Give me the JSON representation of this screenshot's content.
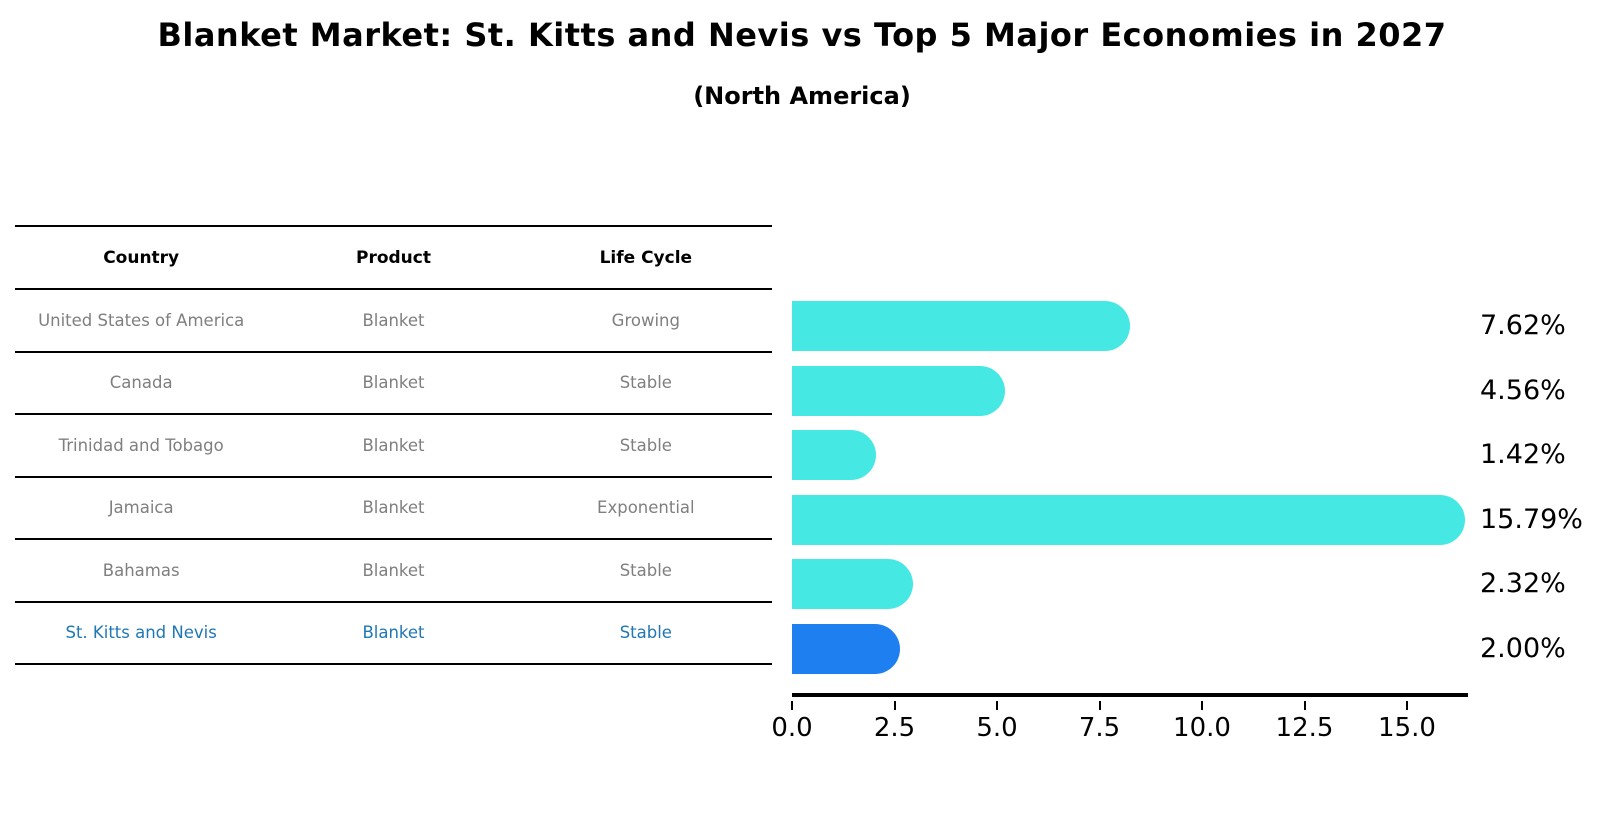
{
  "title": "Blanket Market: St. Kitts and Nevis vs Top 5 Major Economies in 2027",
  "subtitle": "(North America)",
  "table": {
    "headers": [
      "Country",
      "Product",
      "Life Cycle"
    ],
    "rows": [
      {
        "country": "United States of America",
        "product": "Blanket",
        "life_cycle": "Growing",
        "highlighted": false
      },
      {
        "country": "Canada",
        "product": "Blanket",
        "life_cycle": "Stable",
        "highlighted": false
      },
      {
        "country": "Trinidad and Tobago",
        "product": "Blanket",
        "life_cycle": "Stable",
        "highlighted": false
      },
      {
        "country": "Jamaica",
        "product": "Blanket",
        "life_cycle": "Exponential",
        "highlighted": false
      },
      {
        "country": "Bahamas",
        "product": "Blanket",
        "life_cycle": "Stable",
        "highlighted": false
      },
      {
        "country": "St. Kitts and Nevis",
        "product": "Blanket",
        "life_cycle": "Stable",
        "highlighted": true
      }
    ]
  },
  "chart_data": {
    "type": "bar",
    "orientation": "horizontal",
    "title": "Blanket Market: St. Kitts and Nevis vs Top 5 Major Economies in 2027",
    "subtitle": "(North America)",
    "categories": [
      "United States of America",
      "Canada",
      "Trinidad and Tobago",
      "Jamaica",
      "Bahamas",
      "St. Kitts and Nevis"
    ],
    "values": [
      7.62,
      4.56,
      1.42,
      15.79,
      2.32,
      2.0
    ],
    "value_labels": [
      "7.62%",
      "4.56%",
      "1.42%",
      "15.79%",
      "2.32%",
      "2.00%"
    ],
    "xlabel": "",
    "ylabel": "",
    "xlim": [
      0,
      16.5
    ],
    "xticks": [
      0,
      2.5,
      5,
      7.5,
      10,
      12.5,
      15
    ],
    "xtick_labels": [
      "0.0",
      "2.5",
      "5.0",
      "7.5",
      "10.0",
      "12.5",
      "15.0"
    ],
    "grid": false,
    "legend": false,
    "highlight_index": 5
  },
  "colors": {
    "bar": "#46E8E4",
    "highlight_bar": "#1E80F0",
    "highlight_text": "#1F77B4",
    "row_text": "#7F7F7F",
    "axis": "#000000",
    "background": "#FFFFFF"
  }
}
